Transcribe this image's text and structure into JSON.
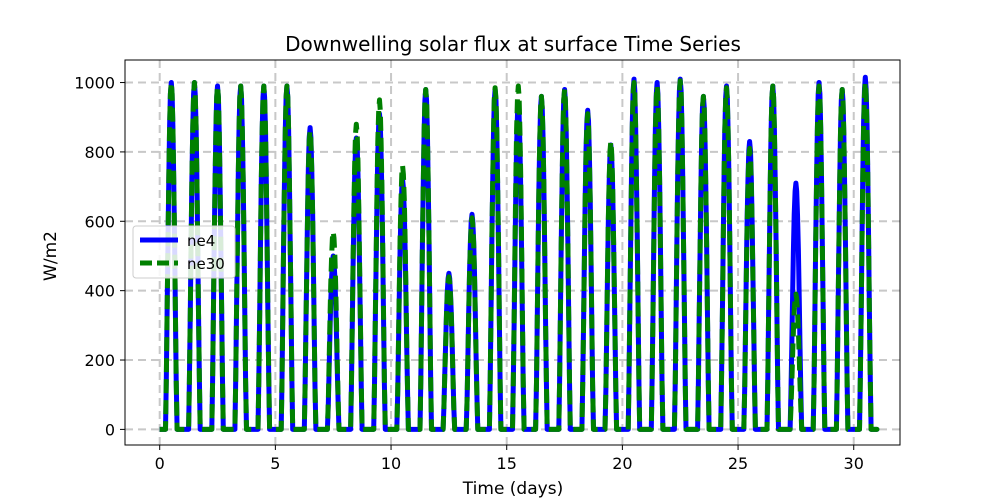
{
  "chart_data": {
    "type": "line",
    "title": "Downwelling solar flux at surface Time Series",
    "xlabel": "Time (days)",
    "ylabel": "W/m2",
    "xlim": [
      -1.5,
      32.0
    ],
    "ylim": [
      -45,
      1065
    ],
    "xticks": [
      0,
      5,
      10,
      15,
      20,
      25,
      30
    ],
    "yticks": [
      0,
      200,
      400,
      600,
      800,
      1000
    ],
    "grid": true,
    "legend_position": "center-left",
    "series": [
      {
        "name": "ne4",
        "color": "#0000ff",
        "style": "solid",
        "x": [
          0,
          1,
          2,
          3,
          4,
          5,
          6,
          7,
          8,
          9,
          10,
          11,
          12,
          13,
          14,
          15,
          16,
          17,
          18,
          19,
          20,
          21,
          22,
          23,
          24,
          25,
          26,
          27,
          28,
          29,
          30
        ],
        "peaks": [
          1000,
          1000,
          990,
          990,
          990,
          990,
          870,
          500,
          840,
          910,
          720,
          980,
          450,
          620,
          980,
          940,
          960,
          980,
          920,
          820,
          1010,
          1000,
          1010,
          960,
          990,
          830,
          990,
          710,
          1000,
          980,
          1015
        ]
      },
      {
        "name": "ne30",
        "color": "#008000",
        "style": "dashed",
        "x": [
          0,
          1,
          2,
          3,
          4,
          5,
          6,
          7,
          8,
          9,
          10,
          11,
          12,
          13,
          14,
          15,
          16,
          17,
          18,
          19,
          20,
          21,
          22,
          23,
          24,
          25,
          26,
          27,
          28,
          29,
          30
        ],
        "peaks": [
          1000,
          1000,
          990,
          990,
          990,
          990,
          860,
          570,
          880,
          950,
          760,
          980,
          440,
          610,
          985,
          990,
          960,
          980,
          910,
          830,
          1000,
          990,
          1005,
          960,
          985,
          810,
          990,
          390,
          990,
          980,
          1000
        ]
      }
    ]
  }
}
